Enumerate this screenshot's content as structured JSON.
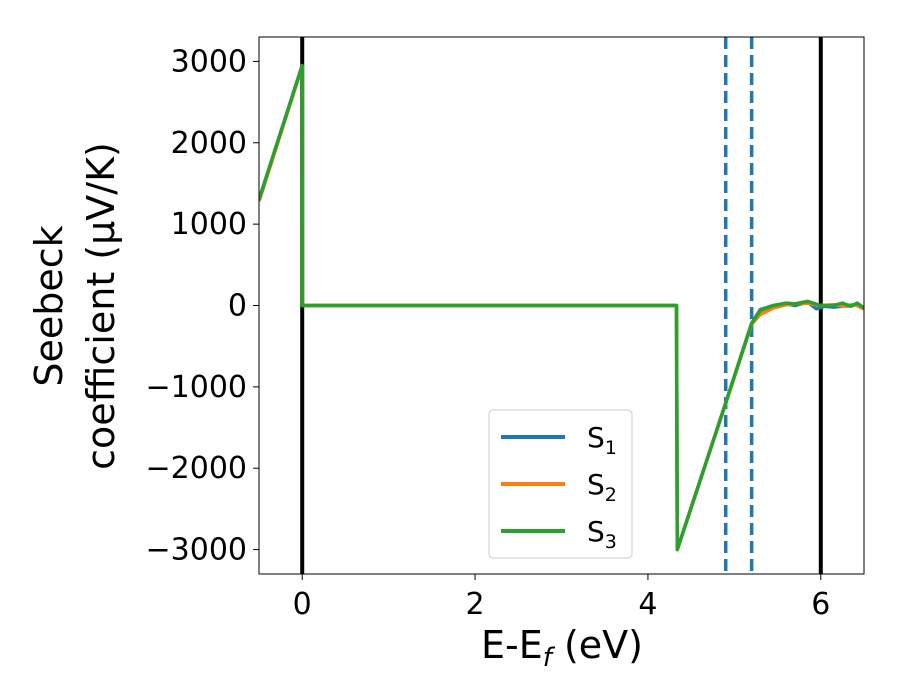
{
  "chart_data": {
    "type": "line",
    "title": "",
    "xlabel": {
      "main": "E-E",
      "sub": "f",
      "unit": " (eV)"
    },
    "ylabel": {
      "line1": "Seebeck",
      "line2": "coefficient  (μV/K)"
    },
    "xlim": [
      -0.5,
      6.5
    ],
    "ylim": [
      -3300,
      3300
    ],
    "xticks": [
      0,
      2,
      4,
      6
    ],
    "xtick_labels": [
      "0",
      "2",
      "4",
      "6"
    ],
    "yticks": [
      3000,
      2000,
      1000,
      0,
      -1000,
      -2000,
      -3000
    ],
    "ytick_labels": [
      "3000",
      "2000",
      "1000",
      "0",
      "−1000",
      "−2000",
      "−3000"
    ],
    "grid": false,
    "legend_position": "lower-center",
    "vertical_lines": [
      {
        "x": 0,
        "style": "solid",
        "color": "#000000"
      },
      {
        "x": 6,
        "style": "solid",
        "color": "#000000"
      },
      {
        "x": 4.9,
        "style": "dashed",
        "color": "#1f77b4"
      },
      {
        "x": 5.2,
        "style": "dashed",
        "color": "#1f77b4"
      }
    ],
    "series": [
      {
        "name": "S",
        "sub": "1",
        "color": "#1f77b4",
        "points": [
          [
            -0.5,
            1300
          ],
          [
            0,
            2950
          ],
          [
            0.001,
            0
          ],
          [
            4.33,
            0
          ],
          [
            4.34,
            -3000
          ],
          [
            4.9,
            -1200
          ],
          [
            5.2,
            -220
          ],
          [
            5.3,
            -50
          ],
          [
            5.45,
            0
          ],
          [
            5.6,
            20
          ],
          [
            5.7,
            0
          ],
          [
            5.85,
            40
          ],
          [
            5.95,
            -40
          ],
          [
            6.05,
            -10
          ],
          [
            6.15,
            -20
          ],
          [
            6.3,
            0
          ],
          [
            6.4,
            10
          ],
          [
            6.5,
            -40
          ]
        ]
      },
      {
        "name": "S",
        "sub": "2",
        "color": "#ff7f0e",
        "points": [
          [
            -0.5,
            1280
          ],
          [
            0,
            2940
          ],
          [
            0.001,
            0
          ],
          [
            4.33,
            0
          ],
          [
            4.34,
            -3000
          ],
          [
            4.9,
            -1200
          ],
          [
            5.2,
            -230
          ],
          [
            5.3,
            -110
          ],
          [
            5.45,
            -30
          ],
          [
            5.6,
            10
          ],
          [
            5.7,
            20
          ],
          [
            5.85,
            30
          ],
          [
            6.0,
            0
          ],
          [
            6.15,
            10
          ],
          [
            6.3,
            -10
          ],
          [
            6.4,
            10
          ],
          [
            6.5,
            -40
          ]
        ]
      },
      {
        "name": "S",
        "sub": "3",
        "color": "#2ca02c",
        "points": [
          [
            -0.5,
            1300
          ],
          [
            0,
            2950
          ],
          [
            0.001,
            0
          ],
          [
            4.33,
            0
          ],
          [
            4.34,
            -3000
          ],
          [
            4.9,
            -1200
          ],
          [
            5.2,
            -220
          ],
          [
            5.3,
            -60
          ],
          [
            5.45,
            0
          ],
          [
            5.6,
            30
          ],
          [
            5.7,
            20
          ],
          [
            5.85,
            50
          ],
          [
            6.0,
            0
          ],
          [
            6.15,
            0
          ],
          [
            6.25,
            30
          ],
          [
            6.35,
            -10
          ],
          [
            6.42,
            30
          ],
          [
            6.5,
            -30
          ]
        ]
      }
    ]
  }
}
